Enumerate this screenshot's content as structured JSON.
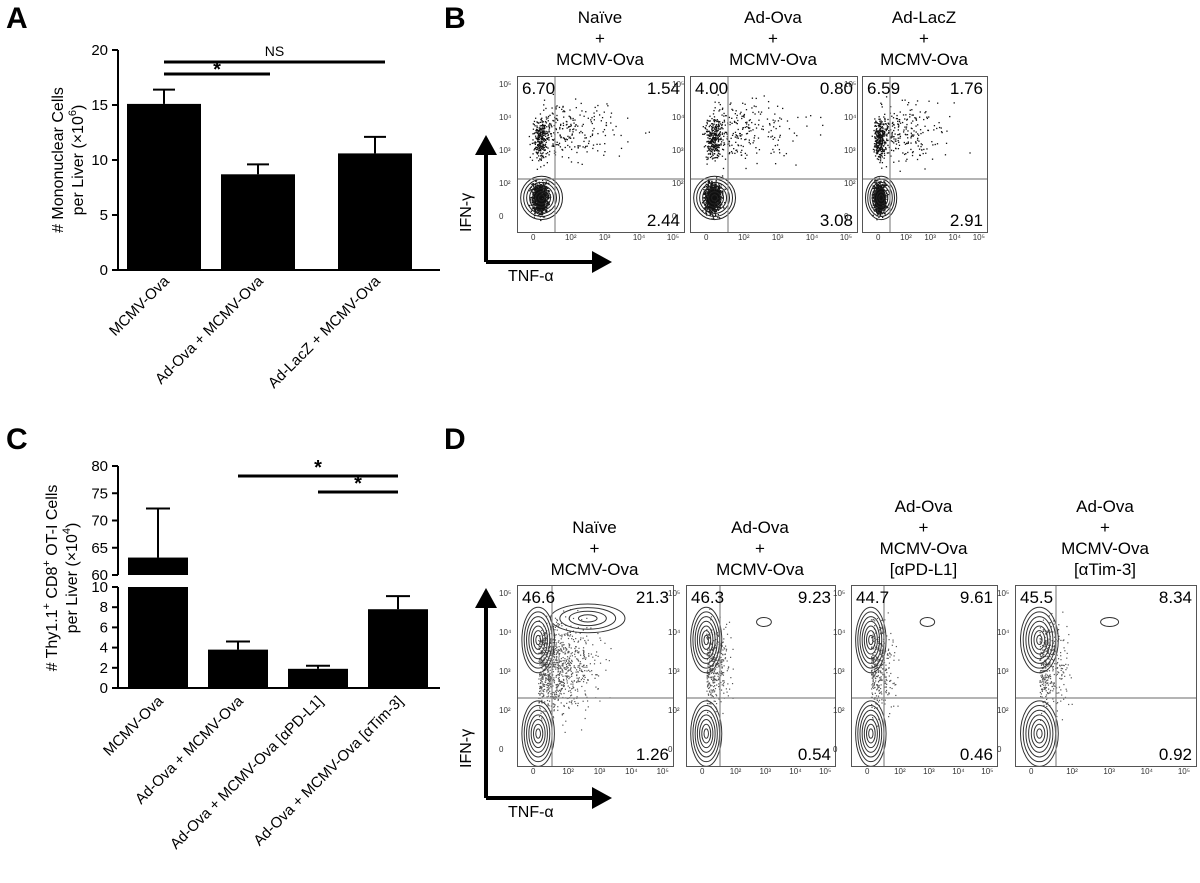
{
  "panels": {
    "A": "A",
    "B": "B",
    "C": "C",
    "D": "D"
  },
  "chart_data": [
    {
      "panel": "A",
      "type": "bar",
      "categories": [
        "MCMV-Ova",
        "Ad-Ova + MCMV-Ova",
        "Ad-LacZ + MCMV-Ova"
      ],
      "values": [
        15.1,
        8.7,
        10.6
      ],
      "errors": [
        1.3,
        0.9,
        1.5
      ],
      "ylabel_line1": "# Mononuclear Cells",
      "ylabel_line2": "per Liver (×10",
      "ylabel_sup": "6",
      "ylabel_end": ")",
      "ylim": [
        0,
        20
      ],
      "yticks": [
        "0",
        "5",
        "10",
        "15",
        "20"
      ],
      "annotations": [
        {
          "from": 0,
          "to": 2,
          "text": "NS"
        },
        {
          "from": 0,
          "to": 1,
          "text": "*"
        }
      ]
    },
    {
      "panel": "C",
      "type": "bar",
      "categories": [
        "MCMV-Ova",
        "Ad-Ova + MCMV-Ova",
        "Ad-Ova + MCMV-Ova [αPD-L1]",
        "Ad-Ova + MCMV-Ova [αTim-3]"
      ],
      "values": [
        63.2,
        3.8,
        1.9,
        7.8
      ],
      "errors": [
        9.0,
        0.8,
        0.3,
        1.3
      ],
      "ylabel_line1_pre": "# Thy1.1",
      "ylabel_line1_sup1": "+",
      "ylabel_line1_mid": " CD8",
      "ylabel_line1_sup2": "+",
      "ylabel_line1_end": " OT-I Cells",
      "ylabel_line2": "per Liver (×10",
      "ylabel_sup": "4",
      "ylabel_end": ")",
      "axis_break": {
        "lower": [
          0,
          10
        ],
        "upper": [
          60,
          80
        ]
      },
      "yticks_lower": [
        "0",
        "2",
        "4",
        "6",
        "8",
        "10"
      ],
      "yticks_upper": [
        "60",
        "65",
        "70",
        "75",
        "80"
      ],
      "annotations": [
        {
          "from": 1,
          "to": 3,
          "text": "*"
        },
        {
          "from": 2,
          "to": 3,
          "text": "*"
        }
      ]
    }
  ],
  "panel_B": {
    "y_axis_label": "IFN-γ",
    "x_axis_label": "TNF-α",
    "plots": [
      {
        "title": [
          "Naïve",
          "+",
          "MCMV-Ova"
        ],
        "ul": "6.70",
        "ur": "1.54",
        "lr": "2.44"
      },
      {
        "title": [
          "Ad-Ova",
          "+",
          "MCMV-Ova"
        ],
        "ul": "4.00",
        "ur": "0.80",
        "lr": "3.08"
      },
      {
        "title": [
          "Ad-LacZ",
          "+",
          "MCMV-Ova"
        ],
        "ul": "6.59",
        "ur": "1.76",
        "lr": "2.91"
      }
    ]
  },
  "panel_D": {
    "y_axis_label": "IFN-γ",
    "x_axis_label": "TNF-α",
    "plots": [
      {
        "title": [
          "Naïve",
          "+",
          "MCMV-Ova"
        ],
        "ul": "46.6",
        "ur": "21.3",
        "lr": "1.26"
      },
      {
        "title": [
          "Ad-Ova",
          "+",
          "MCMV-Ova"
        ],
        "ul": "46.3",
        "ur": "9.23",
        "lr": "0.54"
      },
      {
        "title": [
          "Ad-Ova",
          "+",
          "MCMV-Ova",
          "[αPD-L1]"
        ],
        "ul": "44.7",
        "ur": "9.61",
        "lr": "0.46"
      },
      {
        "title": [
          "Ad-Ova",
          "+",
          "MCMV-Ova",
          "[αTim-3]"
        ],
        "ul": "45.5",
        "ur": "8.34",
        "lr": "0.92"
      }
    ]
  },
  "flow_axis_ticks": {
    "y": [
      "10⁵",
      "10⁴",
      "10³",
      "10²",
      "0"
    ],
    "x": [
      "0",
      "10²",
      "10³",
      "10⁴",
      "10⁵"
    ]
  },
  "colors": {
    "bar": "#000000",
    "gate": "#888888",
    "axis": "#000000"
  }
}
